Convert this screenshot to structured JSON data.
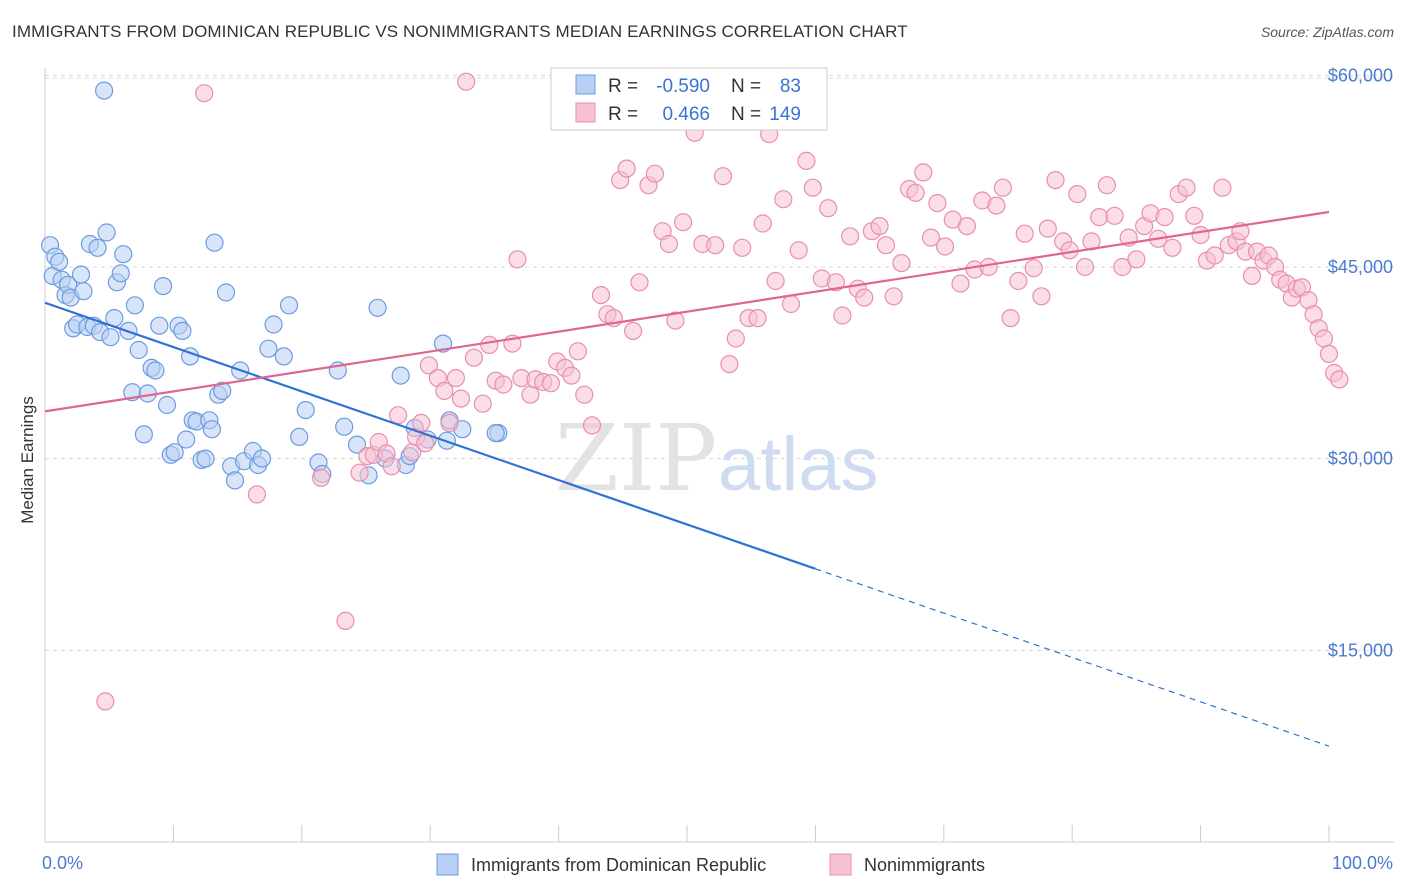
{
  "title": "IMMIGRANTS FROM DOMINICAN REPUBLIC VS NONIMMIGRANTS MEDIAN EARNINGS CORRELATION CHART",
  "source": "Source: ZipAtlas.com",
  "watermark": {
    "zip": "ZIP",
    "atlas": "atlas"
  },
  "colors": {
    "blue_fill": "#b8d0f3",
    "blue_stroke": "#6d9be0",
    "blue_line": "#2f72d4",
    "pink_fill": "#f6c1d2",
    "pink_stroke": "#e88fae",
    "pink_line": "#e0658f",
    "tick_label": "#4a7bd0",
    "grid": "#d8d8d8"
  },
  "legend": {
    "rows": [
      {
        "r_label": "R =",
        "r_value": "-0.590",
        "n_label": "N =",
        "n_value": "83"
      },
      {
        "r_label": "R =",
        "r_value": "0.466",
        "n_label": "N =",
        "n_value": "149"
      }
    ]
  },
  "chart_data": {
    "type": "scatter",
    "title": "IMMIGRANTS FROM DOMINICAN REPUBLIC VS NONIMMIGRANTS MEDIAN EARNINGS CORRELATION CHART",
    "xlabel": "",
    "ylabel": "Median Earnings",
    "xlim": [
      0,
      100
    ],
    "ylim": [
      0,
      63000
    ],
    "x_tick_labels": [
      "0.0%",
      "100.0%"
    ],
    "y_ticks": [
      15000,
      30000,
      45000,
      60000
    ],
    "y_tick_labels": [
      "$15,000",
      "$30,000",
      "$45,000",
      "$60,000"
    ],
    "grid": true,
    "legend_position": "top-center",
    "series": [
      {
        "name": "Immigrants from Dominican Republic",
        "r": -0.59,
        "n": 83,
        "trend": {
          "x0": 0,
          "y0": 42200,
          "x_solid_end": 60,
          "x1": 100,
          "y1": 7500
        },
        "points": [
          [
            0.4,
            46700
          ],
          [
            0.6,
            44300
          ],
          [
            0.8,
            45800
          ],
          [
            1.1,
            45400
          ],
          [
            1.3,
            44000
          ],
          [
            1.6,
            42800
          ],
          [
            1.8,
            43600
          ],
          [
            2.0,
            42600
          ],
          [
            2.2,
            40200
          ],
          [
            2.5,
            40500
          ],
          [
            2.8,
            44400
          ],
          [
            3.0,
            43100
          ],
          [
            3.3,
            40300
          ],
          [
            3.5,
            46800
          ],
          [
            3.8,
            40400
          ],
          [
            4.1,
            46500
          ],
          [
            4.3,
            39900
          ],
          [
            4.6,
            58800
          ],
          [
            4.8,
            47700
          ],
          [
            5.1,
            39500
          ],
          [
            5.4,
            41000
          ],
          [
            5.6,
            43800
          ],
          [
            5.9,
            44500
          ],
          [
            6.1,
            46000
          ],
          [
            6.5,
            40000
          ],
          [
            6.8,
            35200
          ],
          [
            7.0,
            42000
          ],
          [
            7.3,
            38500
          ],
          [
            7.7,
            31900
          ],
          [
            8.0,
            35100
          ],
          [
            8.3,
            37100
          ],
          [
            8.6,
            36900
          ],
          [
            8.9,
            40400
          ],
          [
            9.2,
            43500
          ],
          [
            9.5,
            34200
          ],
          [
            9.8,
            30300
          ],
          [
            10.1,
            30500
          ],
          [
            10.4,
            40400
          ],
          [
            10.7,
            40000
          ],
          [
            11.0,
            31500
          ],
          [
            11.3,
            38000
          ],
          [
            11.5,
            33000
          ],
          [
            11.8,
            32900
          ],
          [
            12.2,
            29900
          ],
          [
            12.5,
            30000
          ],
          [
            12.8,
            33000
          ],
          [
            13.0,
            32300
          ],
          [
            13.2,
            46900
          ],
          [
            13.5,
            35000
          ],
          [
            13.8,
            35300
          ],
          [
            14.1,
            43000
          ],
          [
            14.5,
            29400
          ],
          [
            14.8,
            28300
          ],
          [
            15.2,
            36900
          ],
          [
            15.5,
            29800
          ],
          [
            16.2,
            30600
          ],
          [
            16.6,
            29500
          ],
          [
            16.9,
            30000
          ],
          [
            17.4,
            38600
          ],
          [
            17.8,
            40500
          ],
          [
            18.6,
            38000
          ],
          [
            19.0,
            42000
          ],
          [
            19.8,
            31700
          ],
          [
            20.3,
            33800
          ],
          [
            21.3,
            29700
          ],
          [
            21.6,
            28800
          ],
          [
            22.8,
            36900
          ],
          [
            23.3,
            32500
          ],
          [
            24.3,
            31100
          ],
          [
            25.2,
            28700
          ],
          [
            25.9,
            41800
          ],
          [
            26.5,
            30000
          ],
          [
            27.7,
            36500
          ],
          [
            28.1,
            29500
          ],
          [
            28.4,
            30200
          ],
          [
            28.8,
            32400
          ],
          [
            29.8,
            31500
          ],
          [
            31.0,
            39000
          ],
          [
            31.3,
            31400
          ],
          [
            31.5,
            33000
          ],
          [
            32.5,
            32300
          ],
          [
            35.3,
            32000
          ],
          [
            35.1,
            32000
          ]
        ]
      },
      {
        "name": "Nonimmigrants",
        "r": 0.466,
        "n": 149,
        "trend": {
          "x0": 0,
          "y0": 33700,
          "x1": 100,
          "y1": 49300
        },
        "points": [
          [
            4.7,
            11000
          ],
          [
            12.4,
            58600
          ],
          [
            16.5,
            27200
          ],
          [
            21.5,
            28500
          ],
          [
            23.4,
            17300
          ],
          [
            24.5,
            28900
          ],
          [
            25.1,
            30200
          ],
          [
            25.6,
            30300
          ],
          [
            26.0,
            31300
          ],
          [
            26.6,
            30400
          ],
          [
            27.0,
            29400
          ],
          [
            27.5,
            33400
          ],
          [
            28.6,
            30500
          ],
          [
            28.9,
            31700
          ],
          [
            29.3,
            32800
          ],
          [
            29.6,
            31200
          ],
          [
            29.9,
            37300
          ],
          [
            30.6,
            36300
          ],
          [
            31.1,
            35300
          ],
          [
            31.5,
            32800
          ],
          [
            32.0,
            36300
          ],
          [
            32.4,
            34700
          ],
          [
            32.8,
            59500
          ],
          [
            33.4,
            37900
          ],
          [
            34.1,
            34300
          ],
          [
            34.6,
            38900
          ],
          [
            35.1,
            36100
          ],
          [
            35.7,
            35800
          ],
          [
            36.4,
            39000
          ],
          [
            36.8,
            45600
          ],
          [
            37.1,
            36300
          ],
          [
            37.8,
            35000
          ],
          [
            38.2,
            36200
          ],
          [
            38.8,
            36000
          ],
          [
            39.4,
            35900
          ],
          [
            39.9,
            37600
          ],
          [
            40.5,
            37100
          ],
          [
            41.0,
            36500
          ],
          [
            41.5,
            38400
          ],
          [
            42.0,
            35000
          ],
          [
            42.6,
            32600
          ],
          [
            43.3,
            42800
          ],
          [
            43.8,
            41300
          ],
          [
            44.3,
            41000
          ],
          [
            44.8,
            51800
          ],
          [
            45.3,
            52700
          ],
          [
            45.8,
            40000
          ],
          [
            46.3,
            43800
          ],
          [
            47.0,
            51400
          ],
          [
            47.5,
            52300
          ],
          [
            48.1,
            47800
          ],
          [
            48.6,
            46800
          ],
          [
            49.1,
            40800
          ],
          [
            49.7,
            48500
          ],
          [
            50.1,
            58700
          ],
          [
            50.6,
            55500
          ],
          [
            51.2,
            46800
          ],
          [
            51.7,
            59000
          ],
          [
            52.2,
            46700
          ],
          [
            52.8,
            52100
          ],
          [
            53.3,
            37400
          ],
          [
            53.8,
            39400
          ],
          [
            54.3,
            46500
          ],
          [
            54.8,
            41000
          ],
          [
            55.5,
            41000
          ],
          [
            55.9,
            48400
          ],
          [
            56.4,
            55400
          ],
          [
            56.9,
            43900
          ],
          [
            57.5,
            50300
          ],
          [
            58.1,
            42100
          ],
          [
            58.7,
            46300
          ],
          [
            59.3,
            53300
          ],
          [
            59.8,
            51200
          ],
          [
            60.5,
            44100
          ],
          [
            61.0,
            49600
          ],
          [
            61.6,
            43800
          ],
          [
            62.1,
            41200
          ],
          [
            62.7,
            47400
          ],
          [
            63.3,
            43300
          ],
          [
            63.8,
            42600
          ],
          [
            64.4,
            47800
          ],
          [
            65.0,
            48200
          ],
          [
            65.5,
            46700
          ],
          [
            66.1,
            42700
          ],
          [
            66.7,
            45300
          ],
          [
            67.3,
            51100
          ],
          [
            67.8,
            50800
          ],
          [
            68.4,
            52400
          ],
          [
            69.0,
            47300
          ],
          [
            69.5,
            50000
          ],
          [
            70.1,
            46600
          ],
          [
            70.7,
            48700
          ],
          [
            71.3,
            43700
          ],
          [
            71.8,
            48200
          ],
          [
            72.4,
            44800
          ],
          [
            73.0,
            50200
          ],
          [
            73.5,
            45000
          ],
          [
            74.1,
            49800
          ],
          [
            74.6,
            51200
          ],
          [
            75.2,
            41000
          ],
          [
            75.8,
            43900
          ],
          [
            76.3,
            47600
          ],
          [
            77.0,
            44900
          ],
          [
            77.6,
            42700
          ],
          [
            78.1,
            48000
          ],
          [
            78.7,
            51800
          ],
          [
            79.3,
            47000
          ],
          [
            79.8,
            46300
          ],
          [
            80.4,
            50700
          ],
          [
            81.0,
            45000
          ],
          [
            81.5,
            47000
          ],
          [
            82.1,
            48900
          ],
          [
            82.7,
            51400
          ],
          [
            83.3,
            49000
          ],
          [
            83.9,
            45000
          ],
          [
            84.4,
            47300
          ],
          [
            85.0,
            45600
          ],
          [
            85.6,
            48200
          ],
          [
            86.1,
            49200
          ],
          [
            86.7,
            47200
          ],
          [
            87.2,
            48900
          ],
          [
            87.8,
            46500
          ],
          [
            88.3,
            50700
          ],
          [
            88.9,
            51200
          ],
          [
            89.5,
            49000
          ],
          [
            90.0,
            47500
          ],
          [
            90.5,
            45500
          ],
          [
            91.1,
            45900
          ],
          [
            91.7,
            51200
          ],
          [
            92.2,
            46700
          ],
          [
            92.8,
            47000
          ],
          [
            93.1,
            47800
          ],
          [
            93.5,
            46200
          ],
          [
            94.0,
            44300
          ],
          [
            94.4,
            46200
          ],
          [
            94.9,
            45500
          ],
          [
            95.3,
            45900
          ],
          [
            95.8,
            45000
          ],
          [
            96.2,
            44000
          ],
          [
            96.7,
            43700
          ],
          [
            97.1,
            42600
          ],
          [
            97.5,
            43300
          ],
          [
            97.9,
            43400
          ],
          [
            98.4,
            42400
          ],
          [
            98.8,
            41300
          ],
          [
            99.2,
            40200
          ],
          [
            99.6,
            39400
          ],
          [
            100.0,
            38200
          ],
          [
            100.4,
            36700
          ],
          [
            100.8,
            36200
          ]
        ]
      }
    ]
  }
}
